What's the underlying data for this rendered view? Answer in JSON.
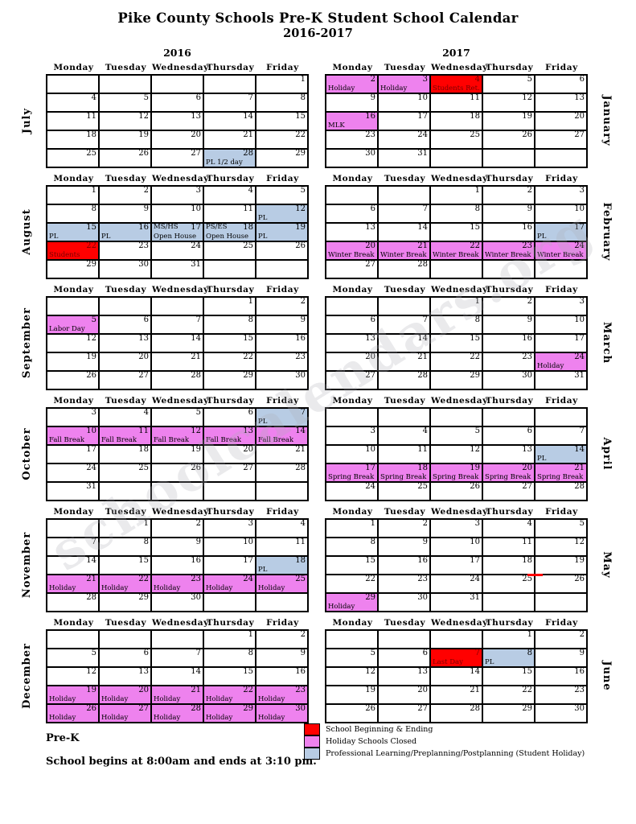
{
  "page": {
    "title": "Pike County Schools Pre-K Student School Calendar",
    "subtitle": "2016-2017",
    "year_left": "2016",
    "year_right": "2017",
    "watermark": "schoolcalendars.org"
  },
  "weekdays": [
    "Monday",
    "Tuesday",
    "Wednesday",
    "Thursday",
    "Friday"
  ],
  "colors": {
    "red": "#ff0000",
    "pink": "#ee82ee",
    "blue": "#b8cce4"
  },
  "legend": {
    "items": [
      {
        "color": "red",
        "label": "School Beginning & Ending"
      },
      {
        "color": "pink",
        "label": "Holiday Schools Closed"
      },
      {
        "color": "blue",
        "label": "Professional Learning/Preplanning/Postplanning (Student Holiday)"
      }
    ]
  },
  "footer": {
    "program": "Pre-K",
    "hours": "School begins at 8:00am and ends at 3:10 pm."
  },
  "months": [
    {
      "name": "July",
      "side": "left",
      "weeks": [
        [
          null,
          null,
          null,
          null,
          {
            "d": 1
          }
        ],
        [
          {
            "d": 4
          },
          {
            "d": 5
          },
          {
            "d": 6
          },
          {
            "d": 7
          },
          {
            "d": 8
          }
        ],
        [
          {
            "d": 11
          },
          {
            "d": 12
          },
          {
            "d": 13
          },
          {
            "d": 14
          },
          {
            "d": 15
          }
        ],
        [
          {
            "d": 18
          },
          {
            "d": 19
          },
          {
            "d": 20
          },
          {
            "d": 21
          },
          {
            "d": 22
          }
        ],
        [
          {
            "d": 25
          },
          {
            "d": 26
          },
          {
            "d": 27
          },
          {
            "d": 28,
            "c": "blue",
            "l": "PL 1/2 day"
          },
          {
            "d": 29
          }
        ]
      ]
    },
    {
      "name": "August",
      "side": "left",
      "weeks": [
        [
          {
            "d": 1
          },
          {
            "d": 2
          },
          {
            "d": 3
          },
          {
            "d": 4
          },
          {
            "d": 5
          }
        ],
        [
          {
            "d": 8
          },
          {
            "d": 9
          },
          {
            "d": 10
          },
          {
            "d": 11
          },
          {
            "d": 12,
            "c": "blue",
            "l": "PL"
          }
        ],
        [
          {
            "d": 15,
            "c": "blue",
            "l": "PL"
          },
          {
            "d": 16,
            "c": "blue",
            "l": "PL"
          },
          {
            "d": 17,
            "c": "blue",
            "tl": "MS/HS",
            "l": "Open House"
          },
          {
            "d": 18,
            "c": "blue",
            "tl": "PS/ES",
            "l": "Open House"
          },
          {
            "d": 19,
            "c": "blue",
            "l": "PL"
          }
        ],
        [
          {
            "d": 22,
            "c": "red",
            "l": "Students"
          },
          {
            "d": 23
          },
          {
            "d": 24
          },
          {
            "d": 25
          },
          {
            "d": 26
          }
        ],
        [
          {
            "d": 29
          },
          {
            "d": 30
          },
          {
            "d": 31
          },
          null,
          null
        ]
      ]
    },
    {
      "name": "September",
      "side": "left",
      "weeks": [
        [
          null,
          null,
          null,
          {
            "d": 1
          },
          {
            "d": 2
          }
        ],
        [
          {
            "d": 5,
            "c": "pink",
            "l": "Labor Day"
          },
          {
            "d": 6
          },
          {
            "d": 7
          },
          {
            "d": 8
          },
          {
            "d": 9
          }
        ],
        [
          {
            "d": 12
          },
          {
            "d": 13
          },
          {
            "d": 14
          },
          {
            "d": 15
          },
          {
            "d": 16
          }
        ],
        [
          {
            "d": 19
          },
          {
            "d": 20
          },
          {
            "d": 21
          },
          {
            "d": 22
          },
          {
            "d": 23
          }
        ],
        [
          {
            "d": 26
          },
          {
            "d": 27
          },
          {
            "d": 28
          },
          {
            "d": 29
          },
          {
            "d": 30
          }
        ]
      ]
    },
    {
      "name": "October",
      "side": "left",
      "weeks": [
        [
          {
            "d": 3
          },
          {
            "d": 4
          },
          {
            "d": 5
          },
          {
            "d": 6
          },
          {
            "d": 7,
            "c": "blue",
            "l": "PL"
          }
        ],
        [
          {
            "d": 10,
            "c": "pink",
            "l": "Fall Break"
          },
          {
            "d": 11,
            "c": "pink",
            "l": "Fall Break"
          },
          {
            "d": 12,
            "c": "pink",
            "l": "Fall Break"
          },
          {
            "d": 13,
            "c": "pink",
            "l": "Fall Break"
          },
          {
            "d": 14,
            "c": "pink",
            "l": "Fall Break"
          }
        ],
        [
          {
            "d": 17
          },
          {
            "d": 18
          },
          {
            "d": 19
          },
          {
            "d": 20
          },
          {
            "d": 21
          }
        ],
        [
          {
            "d": 24
          },
          {
            "d": 25
          },
          {
            "d": 26
          },
          {
            "d": 27
          },
          {
            "d": 28
          }
        ],
        [
          {
            "d": 31
          },
          null,
          null,
          null,
          null
        ]
      ]
    },
    {
      "name": "November",
      "side": "left",
      "weeks": [
        [
          null,
          {
            "d": 1
          },
          {
            "d": 2
          },
          {
            "d": 3
          },
          {
            "d": 4
          }
        ],
        [
          {
            "d": 7
          },
          {
            "d": 8
          },
          {
            "d": 9
          },
          {
            "d": 10
          },
          {
            "d": 11
          }
        ],
        [
          {
            "d": 14
          },
          {
            "d": 15
          },
          {
            "d": 16
          },
          {
            "d": 17
          },
          {
            "d": 18,
            "c": "blue",
            "l": "PL"
          }
        ],
        [
          {
            "d": 21,
            "c": "pink",
            "l": "Holiday"
          },
          {
            "d": 22,
            "c": "pink",
            "l": "Holiday"
          },
          {
            "d": 23,
            "c": "pink",
            "l": "Holiday"
          },
          {
            "d": 24,
            "c": "pink",
            "l": "Holiday"
          },
          {
            "d": 25,
            "c": "pink",
            "l": "Holiday"
          }
        ],
        [
          {
            "d": 28
          },
          {
            "d": 29
          },
          {
            "d": 30
          },
          null,
          null
        ]
      ]
    },
    {
      "name": "December",
      "side": "left",
      "weeks": [
        [
          null,
          null,
          null,
          {
            "d": 1
          },
          {
            "d": 2
          }
        ],
        [
          {
            "d": 5
          },
          {
            "d": 6
          },
          {
            "d": 7
          },
          {
            "d": 8
          },
          {
            "d": 9
          }
        ],
        [
          {
            "d": 12
          },
          {
            "d": 13
          },
          {
            "d": 14
          },
          {
            "d": 15
          },
          {
            "d": 16
          }
        ],
        [
          {
            "d": 19,
            "c": "pink",
            "l": "Holiday"
          },
          {
            "d": 20,
            "c": "pink",
            "l": "Holiday"
          },
          {
            "d": 21,
            "c": "pink",
            "l": "Holiday"
          },
          {
            "d": 22,
            "c": "pink",
            "l": "Holiday"
          },
          {
            "d": 23,
            "c": "pink",
            "l": "Holiday"
          }
        ],
        [
          {
            "d": 26,
            "c": "pink",
            "l": "Holiday"
          },
          {
            "d": 27,
            "c": "pink",
            "l": "Holiday"
          },
          {
            "d": 28,
            "c": "pink",
            "l": "Holiday"
          },
          {
            "d": 29,
            "c": "pink",
            "l": "Holiday"
          },
          {
            "d": 30,
            "c": "pink",
            "l": "Holiday"
          }
        ]
      ]
    },
    {
      "name": "January",
      "side": "right",
      "weeks": [
        [
          {
            "d": 2,
            "c": "pink",
            "l": "Holiday"
          },
          {
            "d": 3,
            "c": "pink",
            "l": "Holiday"
          },
          {
            "d": 4,
            "c": "red",
            "l": "Students Ret."
          },
          {
            "d": 5
          },
          {
            "d": 6
          }
        ],
        [
          {
            "d": 9
          },
          {
            "d": 10
          },
          {
            "d": 11
          },
          {
            "d": 12
          },
          {
            "d": 13
          }
        ],
        [
          {
            "d": 16,
            "c": "pink",
            "l": "MLK"
          },
          {
            "d": 17
          },
          {
            "d": 18
          },
          {
            "d": 19
          },
          {
            "d": 20
          }
        ],
        [
          {
            "d": 23
          },
          {
            "d": 24
          },
          {
            "d": 25
          },
          {
            "d": 26
          },
          {
            "d": 27
          }
        ],
        [
          {
            "d": 30
          },
          {
            "d": 31
          },
          null,
          null,
          null
        ]
      ]
    },
    {
      "name": "February",
      "side": "right",
      "weeks": [
        [
          null,
          null,
          {
            "d": 1
          },
          {
            "d": 2
          },
          {
            "d": 3
          }
        ],
        [
          {
            "d": 6
          },
          {
            "d": 7
          },
          {
            "d": 8
          },
          {
            "d": 9
          },
          {
            "d": 10
          }
        ],
        [
          {
            "d": 13
          },
          {
            "d": 14
          },
          {
            "d": 15
          },
          {
            "d": 16
          },
          {
            "d": 17,
            "c": "blue",
            "l": "PL"
          }
        ],
        [
          {
            "d": 20,
            "c": "pink",
            "l": "Winter Break"
          },
          {
            "d": 21,
            "c": "pink",
            "l": "Winter Break"
          },
          {
            "d": 22,
            "c": "pink",
            "l": "Winter Break"
          },
          {
            "d": 23,
            "c": "pink",
            "l": "Winter Break"
          },
          {
            "d": 24,
            "c": "pink",
            "l": "Winter Break"
          }
        ],
        [
          {
            "d": 27
          },
          {
            "d": 28
          },
          null,
          null,
          null
        ]
      ]
    },
    {
      "name": "March",
      "side": "right",
      "weeks": [
        [
          null,
          null,
          {
            "d": 1
          },
          {
            "d": 2
          },
          {
            "d": 3
          }
        ],
        [
          {
            "d": 6
          },
          {
            "d": 7
          },
          {
            "d": 8
          },
          {
            "d": 9
          },
          {
            "d": 10
          }
        ],
        [
          {
            "d": 13
          },
          {
            "d": 14
          },
          {
            "d": 15
          },
          {
            "d": 16
          },
          {
            "d": 17
          }
        ],
        [
          {
            "d": 20
          },
          {
            "d": 21
          },
          {
            "d": 22
          },
          {
            "d": 23
          },
          {
            "d": 24,
            "c": "pink",
            "l": "Holiday"
          }
        ],
        [
          {
            "d": 27
          },
          {
            "d": 28
          },
          {
            "d": 29
          },
          {
            "d": 30
          },
          {
            "d": 31
          }
        ]
      ]
    },
    {
      "name": "April",
      "side": "right",
      "weeks": [
        [
          null,
          null,
          null,
          null,
          null
        ],
        [
          {
            "d": 3
          },
          {
            "d": 4
          },
          {
            "d": 5
          },
          {
            "d": 6
          },
          {
            "d": 7
          }
        ],
        [
          {
            "d": 10
          },
          {
            "d": 11
          },
          {
            "d": 12
          },
          {
            "d": 13
          },
          {
            "d": 14,
            "c": "blue",
            "l": "PL"
          }
        ],
        [
          {
            "d": 17,
            "c": "pink",
            "l": "Spring Break"
          },
          {
            "d": 18,
            "c": "pink",
            "l": "Spring Break"
          },
          {
            "d": 19,
            "c": "pink",
            "l": "Spring Break"
          },
          {
            "d": 20,
            "c": "pink",
            "l": "Spring Break"
          },
          {
            "d": 21,
            "c": "pink",
            "l": "Spring Break"
          }
        ],
        [
          {
            "d": 24
          },
          {
            "d": 25
          },
          {
            "d": 26
          },
          {
            "d": 27
          },
          {
            "d": 28
          }
        ]
      ]
    },
    {
      "name": "May",
      "side": "right",
      "weeks": [
        [
          {
            "d": 1
          },
          {
            "d": 2
          },
          {
            "d": 3
          },
          {
            "d": 4
          },
          {
            "d": 5
          }
        ],
        [
          {
            "d": 8
          },
          {
            "d": 9
          },
          {
            "d": 10
          },
          {
            "d": 11
          },
          {
            "d": 12
          }
        ],
        [
          {
            "d": 15
          },
          {
            "d": 16
          },
          {
            "d": 17
          },
          {
            "d": 18
          },
          {
            "d": 19,
            "m": "red-dash"
          }
        ],
        [
          {
            "d": 22
          },
          {
            "d": 23
          },
          {
            "d": 24
          },
          {
            "d": 25
          },
          {
            "d": 26
          }
        ],
        [
          {
            "d": 29,
            "c": "pink",
            "l": "Holiday"
          },
          {
            "d": 30
          },
          {
            "d": 31
          },
          null,
          null
        ]
      ]
    },
    {
      "name": "June",
      "side": "right",
      "weeks": [
        [
          null,
          null,
          null,
          {
            "d": 1
          },
          {
            "d": 2
          }
        ],
        [
          {
            "d": 5
          },
          {
            "d": 6
          },
          {
            "d": 7,
            "c": "red",
            "l": "Last Day"
          },
          {
            "d": 8,
            "c": "blue",
            "l": "PL"
          },
          {
            "d": 9
          }
        ],
        [
          {
            "d": 12
          },
          {
            "d": 13
          },
          {
            "d": 14
          },
          {
            "d": 15
          },
          {
            "d": 16
          }
        ],
        [
          {
            "d": 19
          },
          {
            "d": 20
          },
          {
            "d": 21
          },
          {
            "d": 22
          },
          {
            "d": 23
          }
        ],
        [
          {
            "d": 26
          },
          {
            "d": 27
          },
          {
            "d": 28
          },
          {
            "d": 29
          },
          {
            "d": 30
          }
        ]
      ]
    }
  ]
}
